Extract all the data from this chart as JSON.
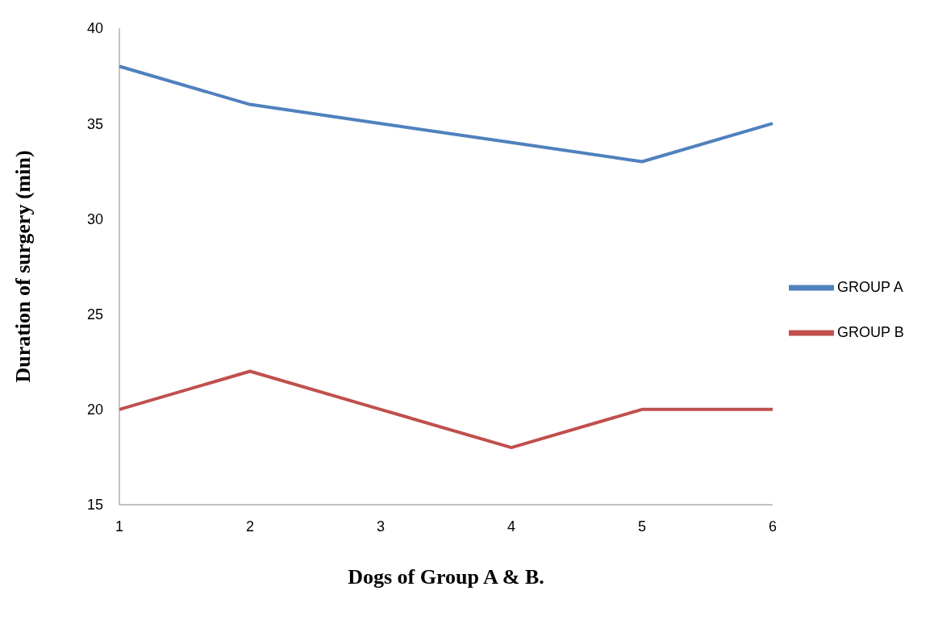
{
  "chart_data": {
    "type": "line",
    "xlabel": "Dogs of Group A & B.",
    "ylabel": "Duration of surgery (min)",
    "categories": [
      "1",
      "2",
      "3",
      "4",
      "5",
      "6"
    ],
    "series": [
      {
        "name": "GROUP A",
        "color": "#4f81bd",
        "values": [
          38,
          36,
          35,
          34,
          33,
          35
        ]
      },
      {
        "name": "GROUP B",
        "color": "#c0504d",
        "values": [
          20,
          22,
          20,
          18,
          20,
          20
        ]
      }
    ],
    "ylim": [
      15,
      40
    ],
    "yticks": [
      15,
      20,
      25,
      30,
      35,
      40
    ],
    "grid": false,
    "legend": "right",
    "marker": "none",
    "line_style": "solid"
  }
}
